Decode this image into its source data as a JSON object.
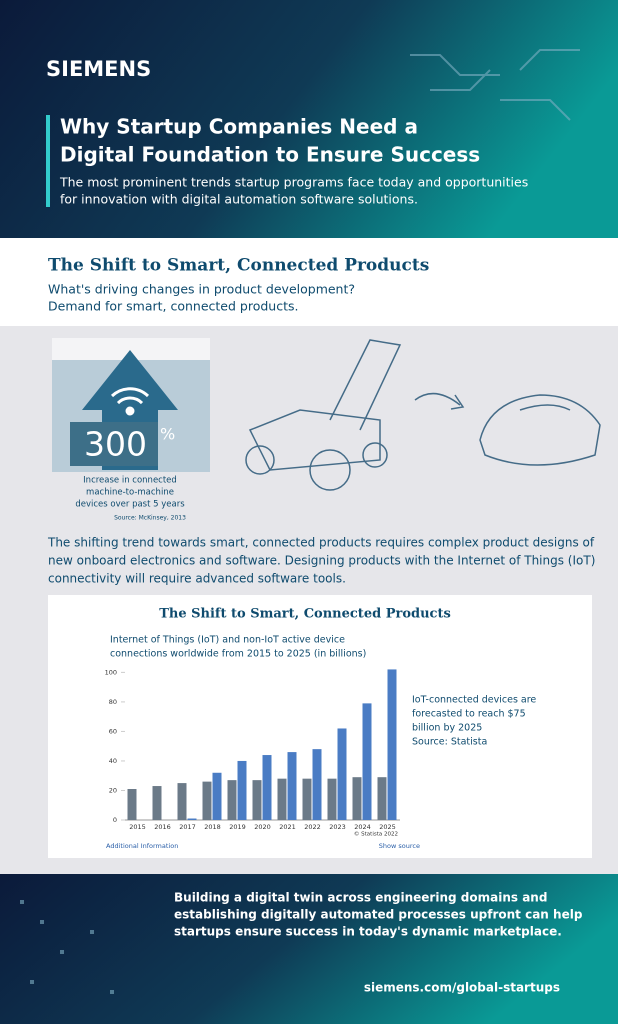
{
  "header": {
    "brand": "SIEMENS",
    "title": [
      "Why Startup Companies Need a",
      "Digital Foundation to Ensure Success"
    ],
    "subtitle": [
      "The most prominent trends startup programs face today and opportunities",
      "for innovation with digital automation software solutions."
    ]
  },
  "section": {
    "heading": "The Shift to Smart, Connected Products",
    "question": [
      "What's driving changes in product development?",
      "Demand for smart, connected products."
    ]
  },
  "stat": {
    "value": "300",
    "unit": "%",
    "caption": [
      "Increase in connected",
      "machine-to-machine",
      "devices over past 5 years"
    ],
    "source": "Source: McKinsey, 2013"
  },
  "body": [
    "The shifting trend towards smart, connected products requires complex product designs of",
    "new onboard electronics and software. Designing products with the Internet of Things (IoT)",
    "connectivity will require advanced software tools."
  ],
  "chart_data": {
    "type": "bar",
    "title": "The Shift to Smart, Connected Products",
    "subtitle": [
      "Internet of Things (IoT) and non-IoT active device",
      "connections worldwide from 2015 to 2025 (in billions)"
    ],
    "annotation": [
      "IoT-connected devices are",
      "forecasted to reach $75",
      "billion by 2025",
      "Source: Statista"
    ],
    "categories": [
      "2015",
      "2016",
      "2017",
      "2018",
      "2019",
      "2020",
      "2021",
      "2022",
      "2023",
      "2024",
      "2025"
    ],
    "series": [
      {
        "color": "#6b7a88",
        "values": [
          21,
          23,
          25,
          26,
          27,
          27,
          28,
          28,
          28,
          29,
          29
        ]
      },
      {
        "color": "#4a7cc4",
        "values": [
          null,
          null,
          1,
          32,
          40,
          44,
          46,
          48,
          62,
          79,
          102
        ]
      }
    ],
    "ylim": [
      0,
      105
    ],
    "yticks": [
      0,
      20,
      40,
      60,
      80,
      100
    ],
    "credit": "© Statista 2022",
    "links": [
      "Additional Information",
      "Show source"
    ]
  },
  "footer": {
    "text": [
      "Building a digital twin across engineering domains and",
      "establishing digitally automated processes upfront can help",
      "startups ensure success in today's dynamic marketplace."
    ],
    "url": "siemens.com/global-startups"
  }
}
